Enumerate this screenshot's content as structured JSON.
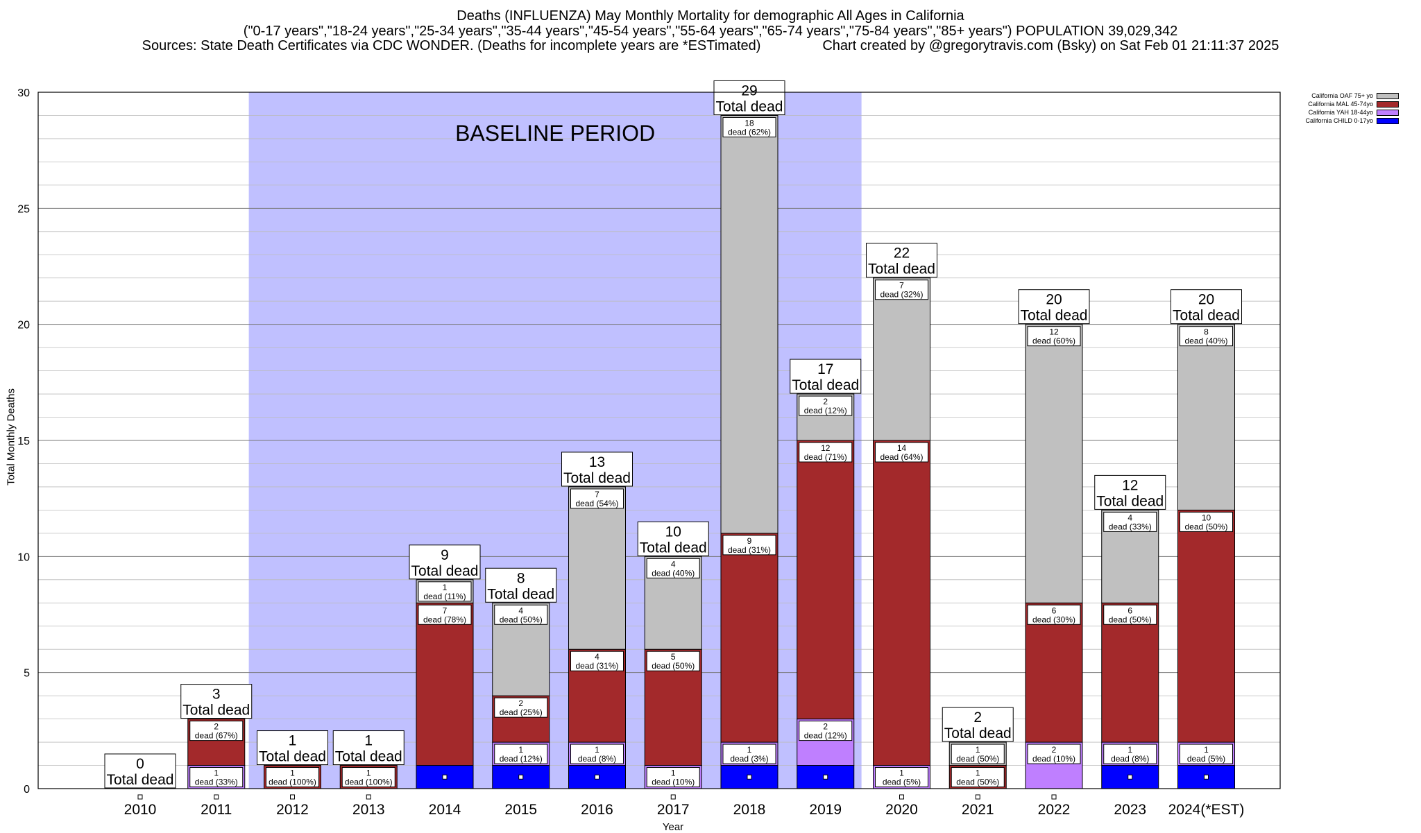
{
  "header": {
    "line1": "Deaths (INFLUENZA) May Monthly Mortality for demographic All Ages in California",
    "line2": "(\"0-17 years\",\"18-24 years\",\"25-34 years\",\"35-44 years\",\"45-54 years\",\"55-64 years\",\"65-74 years\",\"75-84 years\",\"85+ years\") POPULATION 39,029,342",
    "line3": "Sources: State Death Certificates via CDC WONDER. (Deaths for incomplete years are *ESTimated)                Chart created by @gregorytravis.com (Bsky) on Sat Feb 01 21:11:37 2025"
  },
  "legend": [
    {
      "label": "California OAF 75+ yo",
      "color": "#c0c0c0"
    },
    {
      "label": "California MAL 45-74yo",
      "color": "#a3292b"
    },
    {
      "label": "California YAH 18-44yo",
      "color": "#bf7fff"
    },
    {
      "label": "California CHILD 0-17yo",
      "color": "#0000ff"
    }
  ],
  "chart_data": {
    "type": "bar",
    "stacked": true,
    "categories": [
      "2010",
      "2011",
      "2012",
      "2013",
      "2014",
      "2015",
      "2016",
      "2017",
      "2018",
      "2019",
      "2020",
      "2021",
      "2022",
      "2023",
      "2024(*EST)"
    ],
    "series": [
      {
        "name": "California CHILD 0-17yo",
        "color": "#0000ff",
        "values": [
          0,
          0,
          0,
          0,
          1,
          1,
          1,
          0,
          1,
          1,
          0,
          0,
          0,
          1,
          1
        ]
      },
      {
        "name": "California YAH 18-44yo",
        "color": "#bf7fff",
        "values": [
          0,
          1,
          0,
          0,
          0,
          1,
          1,
          1,
          1,
          2,
          1,
          0,
          2,
          1,
          1
        ]
      },
      {
        "name": "California MAL 45-74yo",
        "color": "#a3292b",
        "values": [
          0,
          2,
          1,
          1,
          7,
          2,
          4,
          5,
          9,
          12,
          14,
          1,
          6,
          6,
          10
        ]
      },
      {
        "name": "California OAF 75+ yo",
        "color": "#c0c0c0",
        "values": [
          0,
          0,
          0,
          0,
          1,
          4,
          7,
          4,
          18,
          2,
          7,
          1,
          12,
          4,
          8
        ]
      }
    ],
    "segment_labels": [
      [],
      [
        {
          "series": 1,
          "count": "1",
          "text": "dead (33%)"
        },
        {
          "series": 2,
          "count": "2",
          "text": "dead (67%)"
        }
      ],
      [
        {
          "series": 2,
          "count": "1",
          "text": "dead (100%)"
        }
      ],
      [
        {
          "series": 2,
          "count": "1",
          "text": "dead (100%)"
        }
      ],
      [
        {
          "series": 2,
          "count": "7",
          "text": "dead (78%)"
        },
        {
          "series": 3,
          "count": "1",
          "text": "dead (11%)"
        }
      ],
      [
        {
          "series": 1,
          "count": "1",
          "text": "dead (12%)"
        },
        {
          "series": 2,
          "count": "2",
          "text": "dead (25%)"
        },
        {
          "series": 3,
          "count": "4",
          "text": "dead (50%)"
        }
      ],
      [
        {
          "series": 1,
          "count": "1",
          "text": "dead (8%)"
        },
        {
          "series": 2,
          "count": "4",
          "text": "dead (31%)"
        },
        {
          "series": 3,
          "count": "7",
          "text": "dead (54%)"
        }
      ],
      [
        {
          "series": 1,
          "count": "1",
          "text": "dead (10%)"
        },
        {
          "series": 2,
          "count": "5",
          "text": "dead (50%)"
        },
        {
          "series": 3,
          "count": "4",
          "text": "dead (40%)"
        }
      ],
      [
        {
          "series": 1,
          "count": "1",
          "text": "dead (3%)"
        },
        {
          "series": 2,
          "count": "9",
          "text": "dead (31%)"
        },
        {
          "series": 3,
          "count": "18",
          "text": "dead (62%)"
        }
      ],
      [
        {
          "series": 1,
          "count": "2",
          "text": "dead (12%)"
        },
        {
          "series": 2,
          "count": "12",
          "text": "dead (71%)"
        },
        {
          "series": 3,
          "count": "2",
          "text": "dead (12%)"
        }
      ],
      [
        {
          "series": 1,
          "count": "1",
          "text": "dead (5%)"
        },
        {
          "series": 2,
          "count": "14",
          "text": "dead (64%)"
        },
        {
          "series": 3,
          "count": "7",
          "text": "dead (32%)"
        }
      ],
      [
        {
          "series": 2,
          "count": "1",
          "text": "dead (50%)"
        },
        {
          "series": 3,
          "count": "1",
          "text": "dead (50%)"
        }
      ],
      [
        {
          "series": 1,
          "count": "2",
          "text": "dead (10%)"
        },
        {
          "series": 2,
          "count": "6",
          "text": "dead (30%)"
        },
        {
          "series": 3,
          "count": "12",
          "text": "dead (60%)"
        }
      ],
      [
        {
          "series": 1,
          "count": "1",
          "text": "dead (8%)"
        },
        {
          "series": 2,
          "count": "6",
          "text": "dead (50%)"
        },
        {
          "series": 3,
          "count": "4",
          "text": "dead (33%)"
        }
      ],
      [
        {
          "series": 1,
          "count": "1",
          "text": "dead (5%)"
        },
        {
          "series": 2,
          "count": "10",
          "text": "dead (50%)"
        },
        {
          "series": 3,
          "count": "8",
          "text": "dead (40%)"
        }
      ]
    ],
    "totals": [
      "0",
      "3",
      "1",
      "1",
      "9",
      "8",
      "13",
      "10",
      "29",
      "17",
      "22",
      "2",
      "20",
      "12",
      "20"
    ],
    "total_caption": "Total dead",
    "ylim": [
      0,
      30
    ],
    "yticks": [
      "0",
      "5",
      "10",
      "15",
      "20",
      "25",
      "30"
    ],
    "xlabel": "Year",
    "ylabel": "Total Monthly Deaths",
    "baseline": {
      "label": "BASELINE PERIOD",
      "from": "2012",
      "to": "2019",
      "color": "#c0c0ff"
    },
    "grid": true,
    "legend_position": "top-right"
  }
}
